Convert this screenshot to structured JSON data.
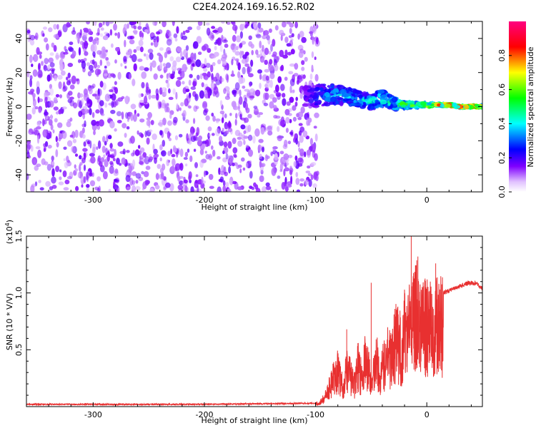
{
  "title": "C2E4.2024.169.16.52.R02",
  "chart_data": [
    {
      "type": "heatmap",
      "name": "spectrogram",
      "xlabel": "Height of straight line (km)",
      "ylabel": "Frequency (Hz)",
      "xlim": [
        -360,
        50
      ],
      "ylim": [
        -50,
        50
      ],
      "xticks": [
        -300,
        -200,
        -100,
        0
      ],
      "xtick_labels": [
        "-300",
        "-200",
        "-100",
        "0"
      ],
      "yticks": [
        -40,
        -20,
        0,
        20,
        40
      ],
      "ytick_labels": [
        "-40",
        "-20",
        "0",
        "20",
        "40"
      ],
      "noise_region_x": [
        -360,
        -100
      ],
      "signal_track": {
        "x": [
          -110,
          -100,
          -90,
          -80,
          -70,
          -60,
          -50,
          -40,
          -30,
          -20,
          -10,
          0,
          10,
          20,
          30,
          40,
          50
        ],
        "center_hz": [
          6,
          6,
          7,
          7,
          6,
          4,
          3,
          5,
          2,
          1,
          1,
          1,
          1,
          1,
          0,
          0,
          0
        ],
        "spread_hz": [
          10,
          11,
          10,
          9,
          8,
          7,
          7,
          8,
          6,
          3,
          2,
          2,
          1,
          1,
          1,
          1,
          1
        ],
        "amplitude": [
          0.2,
          0.3,
          0.35,
          0.4,
          0.4,
          0.4,
          0.45,
          0.45,
          0.5,
          0.6,
          0.65,
          0.7,
          0.8,
          0.85,
          0.9,
          0.9,
          0.85
        ]
      },
      "colorbar": {
        "label": "Normalized spectral amplitude",
        "range": [
          0,
          1
        ],
        "ticks": [
          0.0,
          0.2,
          0.4,
          0.6,
          0.8
        ],
        "tick_labels": [
          "0.0",
          "0.2",
          "0.4",
          "0.6",
          "0.8"
        ],
        "colors": [
          "#ffffff",
          "#7f00ff",
          "#0000ff",
          "#00ffff",
          "#00ff00",
          "#ffff00",
          "#ff0000",
          "#ff0080"
        ]
      }
    },
    {
      "type": "line",
      "name": "snr",
      "xlabel": "Height of straight line (km)",
      "ylabel": "SNR (10 * V/V)",
      "scale_label": "(x10",
      "scale_exponent": "4",
      "scale_close": ")",
      "xlim": [
        -360,
        50
      ],
      "ylim": [
        0,
        1.5
      ],
      "xticks": [
        -300,
        -200,
        -100,
        0
      ],
      "xtick_labels": [
        "-300",
        "-200",
        "-100",
        "0"
      ],
      "yticks": [
        0.5,
        1.0,
        1.5
      ],
      "ytick_labels": [
        "0.5",
        "1.0",
        "1.5"
      ],
      "color": "#e83030",
      "series": [
        {
          "x": [
            -360,
            -300,
            -200,
            -100,
            -95,
            -90,
            -85,
            -80,
            -75,
            -72,
            -68,
            -65,
            -62,
            -58,
            -55,
            -52,
            -50,
            -48,
            -45,
            -42,
            -40,
            -38,
            -35,
            -32,
            -30,
            -28,
            -25,
            -22,
            -20,
            -18,
            -16,
            -14,
            -12,
            -10,
            -8,
            -6,
            -4,
            -2,
            0,
            5,
            10,
            15,
            20,
            25,
            30,
            35,
            40,
            45,
            50
          ],
          "y": [
            0.02,
            0.02,
            0.02,
            0.03,
            0.06,
            0.15,
            0.3,
            0.42,
            0.2,
            0.45,
            0.35,
            0.25,
            0.5,
            0.3,
            0.6,
            0.4,
            0.25,
            0.38,
            0.55,
            0.3,
            0.45,
            0.5,
            0.6,
            0.55,
            0.7,
            0.8,
            0.75,
            0.6,
            0.9,
            0.85,
            1.05,
            0.95,
            1.1,
            1.15,
            1.0,
            0.9,
            0.95,
            1.0,
            0.95,
            0.92,
            0.98,
            1.0,
            1.02,
            1.04,
            1.06,
            1.08,
            1.09,
            1.08,
            1.04
          ]
        }
      ],
      "spikes": [
        {
          "x": -72,
          "y": 0.68
        },
        {
          "x": -50,
          "y": 1.09
        },
        {
          "x": -14,
          "y": 1.53
        },
        {
          "x": -8,
          "y": 1.32
        },
        {
          "x": 8,
          "y": 1.26
        }
      ]
    }
  ]
}
